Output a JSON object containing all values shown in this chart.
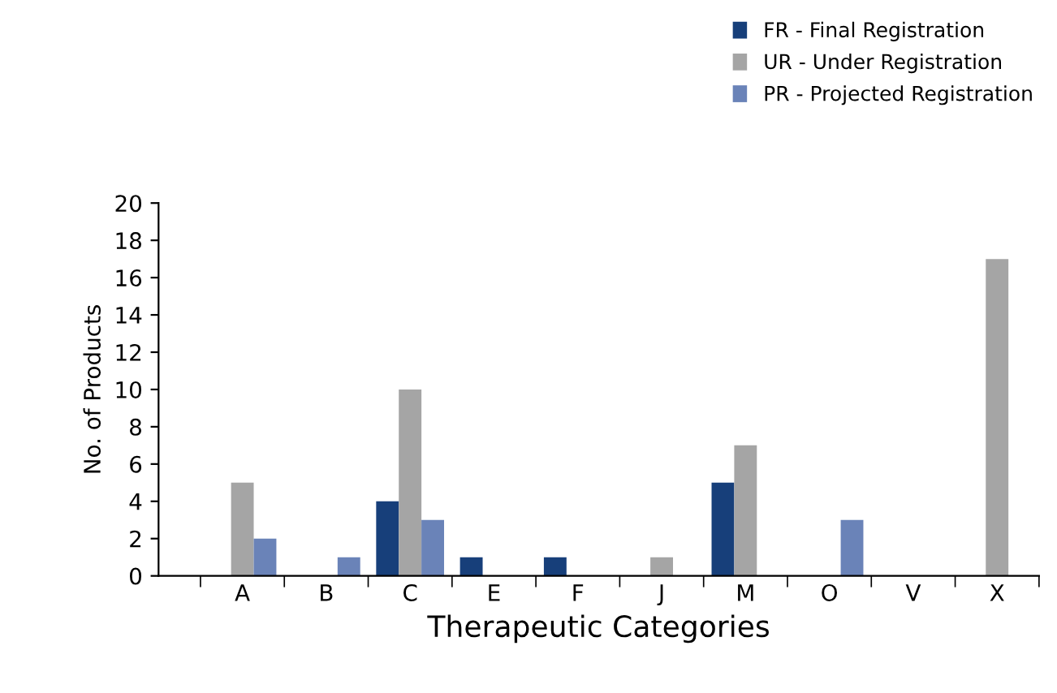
{
  "chart_data": {
    "type": "bar",
    "xlabel": "Therapeutic Categories",
    "ylabel": "No. of Products",
    "categories": [
      "A",
      "B",
      "C",
      "E",
      "F",
      "J",
      "M",
      "O",
      "V",
      "X"
    ],
    "series": [
      {
        "name": "FR - Final Registration",
        "color": "#173f7a",
        "values": [
          0,
          0,
          4,
          1,
          1,
          0,
          5,
          0,
          0,
          0
        ]
      },
      {
        "name": "UR - Under Registration",
        "color": "#a5a5a5",
        "values": [
          5,
          0,
          10,
          0,
          0,
          1,
          7,
          0,
          0,
          17
        ]
      },
      {
        "name": "PR - Projected Registration",
        "color": "#6a83b8",
        "values": [
          2,
          1,
          3,
          0,
          0,
          0,
          0,
          3,
          0,
          0
        ]
      }
    ],
    "ylim": [
      0,
      20
    ],
    "yticks": [
      0,
      2,
      4,
      6,
      8,
      10,
      12,
      14,
      16,
      18,
      20
    ],
    "grid": false,
    "legend": "top right"
  }
}
